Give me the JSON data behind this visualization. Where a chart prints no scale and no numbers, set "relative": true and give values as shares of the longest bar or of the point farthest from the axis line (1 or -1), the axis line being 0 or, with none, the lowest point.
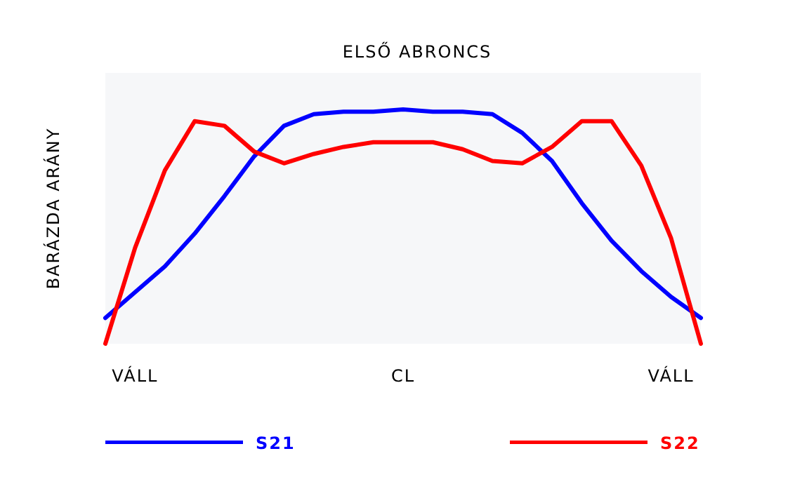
{
  "chart_data": {
    "type": "line",
    "title": "ELSŐ ABRONCS",
    "ylabel": "BARÁZDA ARÁNY",
    "relative": true,
    "legend": "bottom",
    "categories": [
      null,
      "VÁLL",
      null,
      null,
      null,
      null,
      null,
      null,
      null,
      null,
      "CL",
      null,
      null,
      null,
      null,
      null,
      null,
      null,
      null,
      "VÁLL",
      null
    ],
    "series": [
      {
        "name": "S21",
        "color": "#0000ff",
        "values": [
          0.11,
          0.22,
          0.33,
          0.47,
          0.63,
          0.8,
          0.93,
          0.98,
          0.99,
          0.99,
          1,
          0.99,
          0.99,
          0.98,
          0.9,
          0.78,
          0.6,
          0.44,
          0.31,
          0.2,
          0.11
        ]
      },
      {
        "name": "S22",
        "color": "#ff0000",
        "values": [
          0,
          0.41,
          0.74,
          0.95,
          0.93,
          0.82,
          0.77,
          0.81,
          0.84,
          0.86,
          0.86,
          0.86,
          0.83,
          0.78,
          0.77,
          0.84,
          0.95,
          0.95,
          0.76,
          0.45,
          0
        ]
      }
    ]
  }
}
